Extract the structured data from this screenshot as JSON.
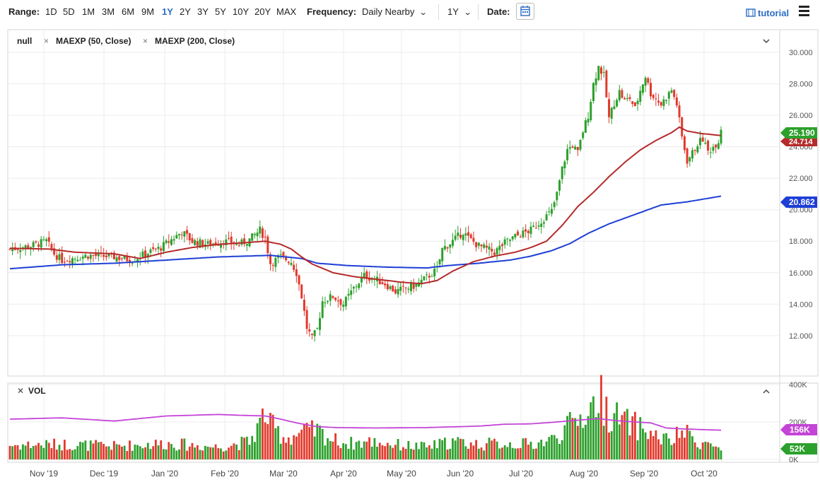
{
  "toolbar": {
    "range_label": "Range:",
    "ranges": [
      "1D",
      "5D",
      "1M",
      "3M",
      "6M",
      "9M",
      "1Y",
      "2Y",
      "3Y",
      "5Y",
      "10Y",
      "20Y",
      "MAX"
    ],
    "active_range": "1Y",
    "frequency_label": "Frequency:",
    "frequency_value": "Daily Nearby",
    "period_value": "1Y",
    "date_label": "Date:",
    "tutorial_label": "tutorial"
  },
  "price_panel": {
    "legend": [
      "null",
      "MAEXP (50, Close)",
      "MAEXP (200, Close)"
    ],
    "last_price": "25.190",
    "ma50_label": "24.714",
    "ma200_label": "20.862"
  },
  "volume_panel": {
    "title": "VOL",
    "vol_avg_label": "156K",
    "vol_last_label": "52K"
  },
  "colors": {
    "up": "#2ca02c",
    "down": "#e2392d",
    "ma50": "#b52a2a",
    "ma200": "#1d3fd6",
    "vol_ma": "#c344d6",
    "active": "#2a6cc4"
  },
  "chart_data": {
    "type": "candlestick",
    "title": "",
    "x_tick_labels": [
      "Nov '19",
      "Dec '19",
      "Jan '20",
      "Feb '20",
      "Mar '20",
      "Apr '20",
      "May '20",
      "Jun '20",
      "Jul '20",
      "Aug '20",
      "Sep '20",
      "Oct '20"
    ],
    "price_axis": {
      "range": [
        10.6,
        30.9
      ],
      "ticks": [
        "12.000",
        "14.000",
        "16.000",
        "18.000",
        "20.000",
        "22.000",
        "24.000",
        "26.000",
        "28.000",
        "30.000"
      ]
    },
    "volume_axis": {
      "range": [
        0,
        400000
      ],
      "ticks": [
        "0K",
        "200K",
        "400K"
      ]
    },
    "price_anchors": [
      [
        0,
        17.5
      ],
      [
        8,
        17.7
      ],
      [
        14,
        18.0
      ],
      [
        17,
        17.2
      ],
      [
        20,
        16.8
      ],
      [
        30,
        17.1
      ],
      [
        40,
        17.0
      ],
      [
        47,
        16.8
      ],
      [
        52,
        17.2
      ],
      [
        58,
        17.6
      ],
      [
        62,
        18.1
      ],
      [
        66,
        18.6
      ],
      [
        70,
        18.0
      ],
      [
        76,
        17.8
      ],
      [
        82,
        18.0
      ],
      [
        88,
        17.8
      ],
      [
        92,
        18.1
      ],
      [
        96,
        18.7
      ],
      [
        98,
        18.2
      ],
      [
        100,
        16.6
      ],
      [
        104,
        17.0
      ],
      [
        108,
        16.7
      ],
      [
        110,
        16.0
      ],
      [
        112,
        14.5
      ],
      [
        114,
        12.5
      ],
      [
        116,
        11.8
      ],
      [
        118,
        12.4
      ],
      [
        120,
        14.2
      ],
      [
        124,
        14.5
      ],
      [
        128,
        14.0
      ],
      [
        132,
        15.0
      ],
      [
        136,
        15.8
      ],
      [
        140,
        15.6
      ],
      [
        144,
        15.3
      ],
      [
        148,
        14.8
      ],
      [
        152,
        15.0
      ],
      [
        156,
        15.2
      ],
      [
        160,
        15.7
      ],
      [
        164,
        16.2
      ],
      [
        166,
        17.5
      ],
      [
        170,
        18.0
      ],
      [
        174,
        18.6
      ],
      [
        176,
        18.2
      ],
      [
        180,
        17.7
      ],
      [
        186,
        17.3
      ],
      [
        190,
        17.9
      ],
      [
        194,
        18.3
      ],
      [
        200,
        18.7
      ],
      [
        204,
        19.3
      ],
      [
        208,
        19.9
      ],
      [
        210,
        21.0
      ],
      [
        212,
        22.6
      ],
      [
        214,
        23.8
      ],
      [
        216,
        24.1
      ],
      [
        218,
        23.6
      ],
      [
        220,
        25.0
      ],
      [
        222,
        26.0
      ],
      [
        224,
        28.0
      ],
      [
        226,
        29.1
      ],
      [
        228,
        28.5
      ],
      [
        230,
        25.8
      ],
      [
        232,
        26.8
      ],
      [
        234,
        27.5
      ],
      [
        236,
        26.9
      ],
      [
        238,
        27.1
      ],
      [
        240,
        26.4
      ],
      [
        242,
        27.6
      ],
      [
        244,
        28.5
      ],
      [
        246,
        27.4
      ],
      [
        250,
        26.7
      ],
      [
        254,
        27.6
      ],
      [
        256,
        26.7
      ],
      [
        258,
        24.6
      ],
      [
        260,
        23.1
      ],
      [
        262,
        23.6
      ],
      [
        264,
        24.2
      ],
      [
        266,
        24.5
      ],
      [
        268,
        23.7
      ],
      [
        270,
        24.0
      ],
      [
        272,
        24.4
      ],
      [
        273,
        25.19
      ]
    ],
    "ma50_anchors": [
      [
        0,
        17.55
      ],
      [
        15,
        17.5
      ],
      [
        25,
        17.3
      ],
      [
        40,
        17.2
      ],
      [
        50,
        16.9
      ],
      [
        60,
        17.3
      ],
      [
        70,
        17.6
      ],
      [
        80,
        17.8
      ],
      [
        90,
        17.9
      ],
      [
        98,
        18.0
      ],
      [
        104,
        17.8
      ],
      [
        108,
        17.5
      ],
      [
        112,
        17.0
      ],
      [
        116,
        16.55
      ],
      [
        124,
        16.0
      ],
      [
        132,
        15.75
      ],
      [
        140,
        15.6
      ],
      [
        150,
        15.4
      ],
      [
        158,
        15.3
      ],
      [
        164,
        15.5
      ],
      [
        170,
        16.1
      ],
      [
        178,
        16.7
      ],
      [
        186,
        17.05
      ],
      [
        194,
        17.3
      ],
      [
        200,
        17.6
      ],
      [
        206,
        18.0
      ],
      [
        212,
        19.0
      ],
      [
        218,
        20.2
      ],
      [
        224,
        21.1
      ],
      [
        230,
        22.1
      ],
      [
        236,
        23.0
      ],
      [
        242,
        23.8
      ],
      [
        248,
        24.4
      ],
      [
        254,
        24.9
      ],
      [
        257,
        25.25
      ],
      [
        260,
        25.0
      ],
      [
        265,
        24.85
      ],
      [
        273,
        24.714
      ]
    ],
    "ma200_anchors": [
      [
        0,
        16.25
      ],
      [
        20,
        16.5
      ],
      [
        40,
        16.6
      ],
      [
        60,
        16.8
      ],
      [
        80,
        17.0
      ],
      [
        100,
        17.1
      ],
      [
        112,
        16.9
      ],
      [
        118,
        16.6
      ],
      [
        130,
        16.45
      ],
      [
        145,
        16.35
      ],
      [
        160,
        16.3
      ],
      [
        168,
        16.45
      ],
      [
        180,
        16.6
      ],
      [
        192,
        16.8
      ],
      [
        200,
        17.05
      ],
      [
        208,
        17.4
      ],
      [
        215,
        17.85
      ],
      [
        222,
        18.5
      ],
      [
        230,
        19.1
      ],
      [
        240,
        19.7
      ],
      [
        250,
        20.3
      ],
      [
        260,
        20.5
      ],
      [
        273,
        20.862
      ]
    ],
    "volume_anchors": [
      [
        0,
        80000
      ],
      [
        20,
        85000
      ],
      [
        40,
        75000
      ],
      [
        60,
        90000
      ],
      [
        80,
        70000
      ],
      [
        92,
        100000
      ],
      [
        96,
        200000
      ],
      [
        98,
        270000
      ],
      [
        100,
        190000
      ],
      [
        106,
        120000
      ],
      [
        112,
        150000
      ],
      [
        118,
        160000
      ],
      [
        124,
        110000
      ],
      [
        130,
        90000
      ],
      [
        140,
        100000
      ],
      [
        150,
        80000
      ],
      [
        160,
        70000
      ],
      [
        170,
        100000
      ],
      [
        180,
        85000
      ],
      [
        190,
        90000
      ],
      [
        200,
        85000
      ],
      [
        208,
        110000
      ],
      [
        212,
        160000
      ],
      [
        216,
        200000
      ],
      [
        220,
        250000
      ],
      [
        224,
        300000
      ],
      [
        226,
        370000
      ],
      [
        230,
        260000
      ],
      [
        236,
        210000
      ],
      [
        242,
        180000
      ],
      [
        248,
        130000
      ],
      [
        254,
        100000
      ],
      [
        258,
        160000
      ],
      [
        264,
        100000
      ],
      [
        270,
        80000
      ],
      [
        273,
        52000
      ]
    ],
    "volume_ma_anchors": [
      [
        0,
        215000
      ],
      [
        20,
        222000
      ],
      [
        40,
        205000
      ],
      [
        60,
        232000
      ],
      [
        80,
        240000
      ],
      [
        90,
        235000
      ],
      [
        98,
        232000
      ],
      [
        104,
        215000
      ],
      [
        110,
        195000
      ],
      [
        118,
        175000
      ],
      [
        126,
        170000
      ],
      [
        140,
        168000
      ],
      [
        160,
        170000
      ],
      [
        180,
        178000
      ],
      [
        190,
        188000
      ],
      [
        200,
        190000
      ],
      [
        210,
        200000
      ],
      [
        220,
        212000
      ],
      [
        226,
        218000
      ],
      [
        232,
        208000
      ],
      [
        240,
        200000
      ],
      [
        246,
        195000
      ],
      [
        252,
        168000
      ],
      [
        260,
        162000
      ],
      [
        273,
        156000
      ]
    ]
  }
}
